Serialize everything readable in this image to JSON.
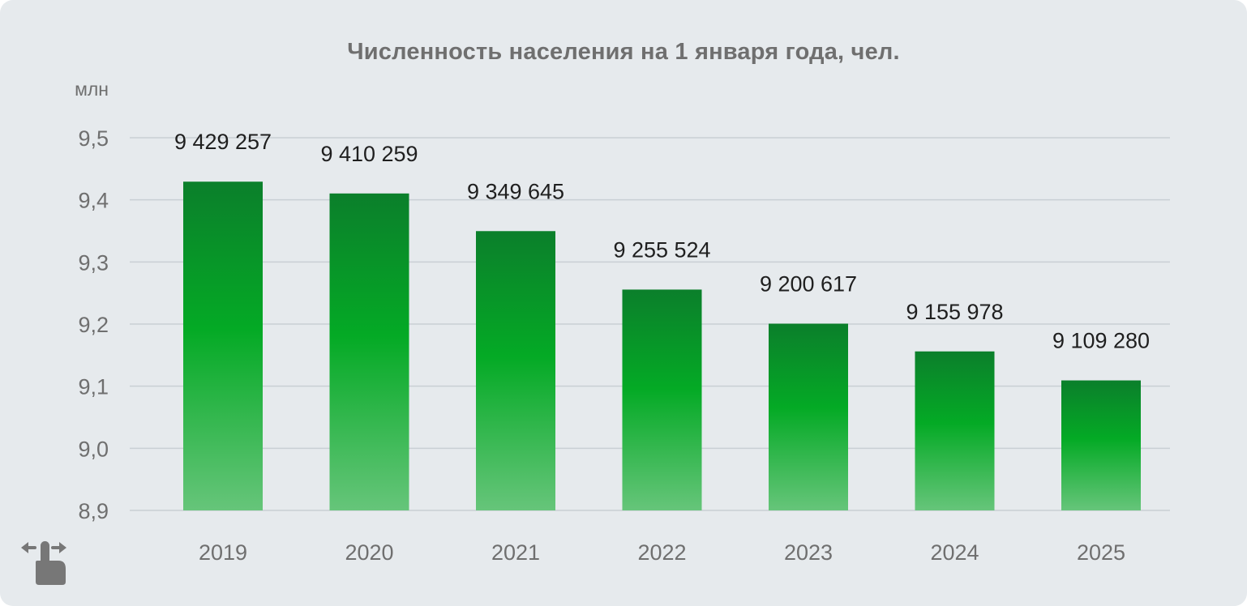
{
  "chart_data": {
    "type": "bar",
    "title": "Численность населения на 1 января года, чел.",
    "ylabel": "млн",
    "categories": [
      "2019",
      "2020",
      "2021",
      "2022",
      "2023",
      "2024",
      "2025"
    ],
    "values": [
      9429257,
      9410259,
      9349645,
      9255524,
      9200617,
      9155978,
      9109280
    ],
    "value_labels": [
      "9 429 257",
      "9 410 259",
      "9 349 645",
      "9 255 524",
      "9 200 617",
      "9 155 978",
      "9 109 280"
    ],
    "yticks": [
      "8,9",
      "9,0",
      "9,1",
      "9,2",
      "9,3",
      "9,4",
      "9,5"
    ],
    "ylim": [
      8.9,
      9.5
    ],
    "grid": true,
    "legend": "none",
    "bar_color": "#0aa829"
  },
  "icons": {
    "swipe": "swipe-hand-icon"
  }
}
